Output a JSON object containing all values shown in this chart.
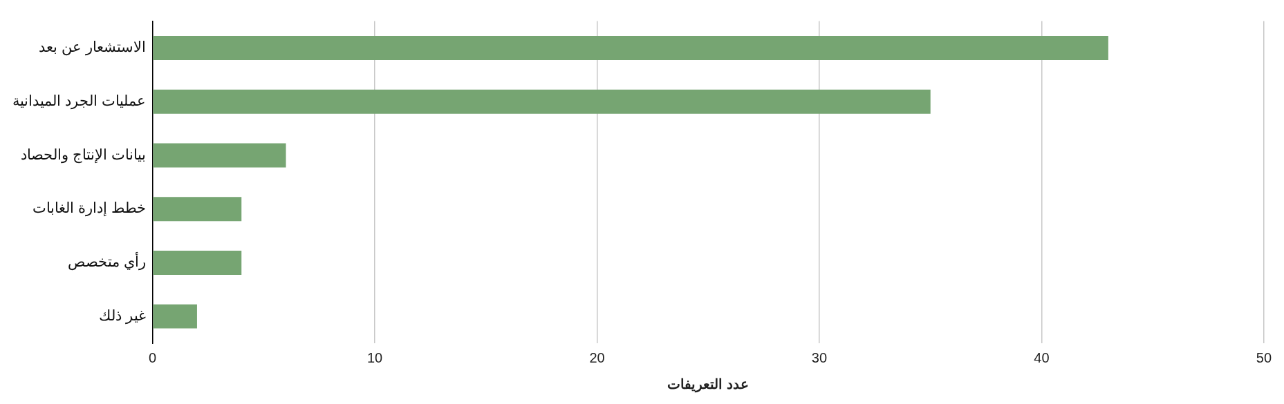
{
  "chart_data": {
    "type": "bar",
    "orientation": "horizontal",
    "xlabel": "عدد التعريفات",
    "categories": [
      "الاستشعار عن بعد",
      "عمليات الجرد الميدانية",
      "بيانات الإنتاج والحصاد",
      "خطط إدارة الغابات",
      "رأي متخصص",
      "غير ذلك"
    ],
    "values": [
      43,
      35,
      6,
      4,
      4,
      2
    ],
    "color": "#76a572",
    "xlim": [
      0,
      50
    ],
    "xticks": [
      0,
      10,
      20,
      30,
      40,
      50
    ],
    "grid": "x"
  }
}
